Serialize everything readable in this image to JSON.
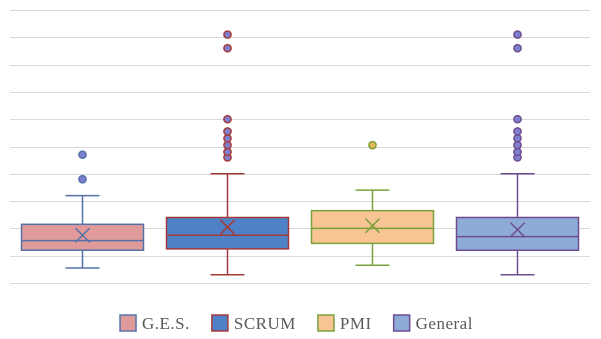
{
  "chart_data": {
    "type": "boxplot",
    "title": "",
    "xlabel": "",
    "ylabel": "",
    "ylim": [
      0,
      10
    ],
    "ytick_step": 1,
    "grid": true,
    "y_tick_labels_shown": false,
    "legend_position": "bottom",
    "series": [
      {
        "name": "G.E.S.",
        "fill": "#e09a9a",
        "stroke": "#5472a8",
        "whisker_low": 0.55,
        "q1": 1.2,
        "median": 1.55,
        "q3": 2.15,
        "whisker_high": 3.2,
        "mean": 1.75,
        "outliers": [
          3.8,
          4.7
        ]
      },
      {
        "name": "SCRUM",
        "fill": "#4f81c7",
        "stroke": "#a33a3a",
        "whisker_low": 0.3,
        "q1": 1.25,
        "median": 1.75,
        "q3": 2.4,
        "whisker_high": 4.0,
        "mean": 2.05,
        "outliers": [
          4.6,
          4.8,
          5.05,
          5.3,
          5.55,
          6.0,
          8.6,
          9.1
        ]
      },
      {
        "name": "PMI",
        "fill": "#f8c494",
        "stroke": "#7aa03b",
        "whisker_low": 0.65,
        "q1": 1.45,
        "median": 2.0,
        "q3": 2.65,
        "whisker_high": 3.4,
        "mean": 2.1,
        "outliers": [
          5.05
        ]
      },
      {
        "name": "General",
        "fill": "#8eabd8",
        "stroke": "#6e4d8f",
        "whisker_low": 0.3,
        "q1": 1.2,
        "median": 1.7,
        "q3": 2.4,
        "whisker_high": 4.0,
        "mean": 1.95,
        "outliers": [
          4.6,
          4.8,
          5.05,
          5.3,
          5.55,
          6.0,
          8.6,
          9.1
        ]
      }
    ],
    "colors": {
      "gridline": "#d9d9d9",
      "outlier_fill": "#7f7fd0",
      "pmi_outlier_fill": "#e6b85c",
      "legend_text": "#595959"
    }
  }
}
